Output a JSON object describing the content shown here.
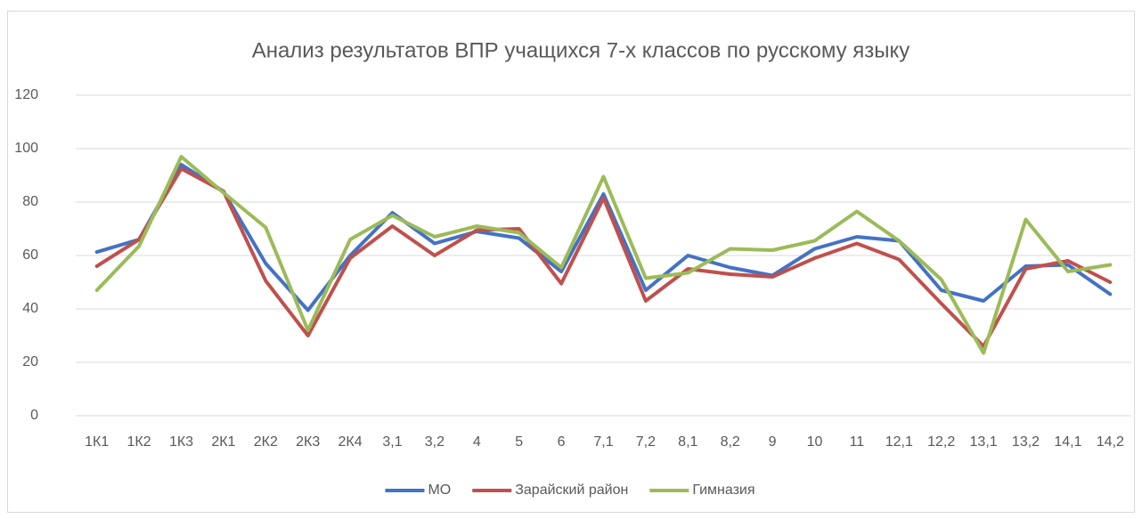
{
  "chart_data": {
    "type": "line",
    "title": "Анализ результатов  ВПР  учащихся 7-х классов по русскому языку",
    "categories": [
      "1К1",
      "1К2",
      "1К3",
      "2К1",
      "2К2",
      "2К3",
      "2К4",
      "3,1",
      "3,2",
      "4",
      "5",
      "6",
      "7,1",
      "7,2",
      "8,1",
      "8,2",
      "9",
      "10",
      "11",
      "12,1",
      "12,2",
      "13,1",
      "13,2",
      "14,1",
      "14,2"
    ],
    "series": [
      {
        "name": "МО",
        "color": "#4472c4",
        "values": [
          61.3,
          66,
          94,
          84,
          57,
          39.5,
          60,
          76,
          64.5,
          69,
          66.5,
          54,
          83,
          47,
          60,
          55.5,
          52.5,
          62.5,
          67,
          65.5,
          47,
          43,
          56,
          56.5,
          45.5
        ]
      },
      {
        "name": "Зарайский район",
        "color": "#c0504d",
        "values": [
          56,
          66,
          92.5,
          84,
          50.5,
          30,
          59,
          71,
          60,
          69.5,
          70,
          49.5,
          81.5,
          43,
          55,
          53,
          52,
          59,
          64.5,
          58.5,
          42,
          26,
          55,
          58,
          50
        ]
      },
      {
        "name": "Гимназия",
        "color": "#9bbb59",
        "values": [
          47,
          63.5,
          97,
          83.5,
          70.5,
          32,
          66,
          75,
          67,
          71,
          68.5,
          55.5,
          89.5,
          51.5,
          53.5,
          62.5,
          62,
          65.5,
          76.5,
          65.5,
          51,
          23.5,
          73.5,
          54,
          56.5
        ]
      }
    ],
    "ylim": [
      0,
      120
    ],
    "yticks": [
      0,
      20,
      40,
      60,
      80,
      100,
      120
    ],
    "grid": true,
    "legend": "bottom"
  }
}
